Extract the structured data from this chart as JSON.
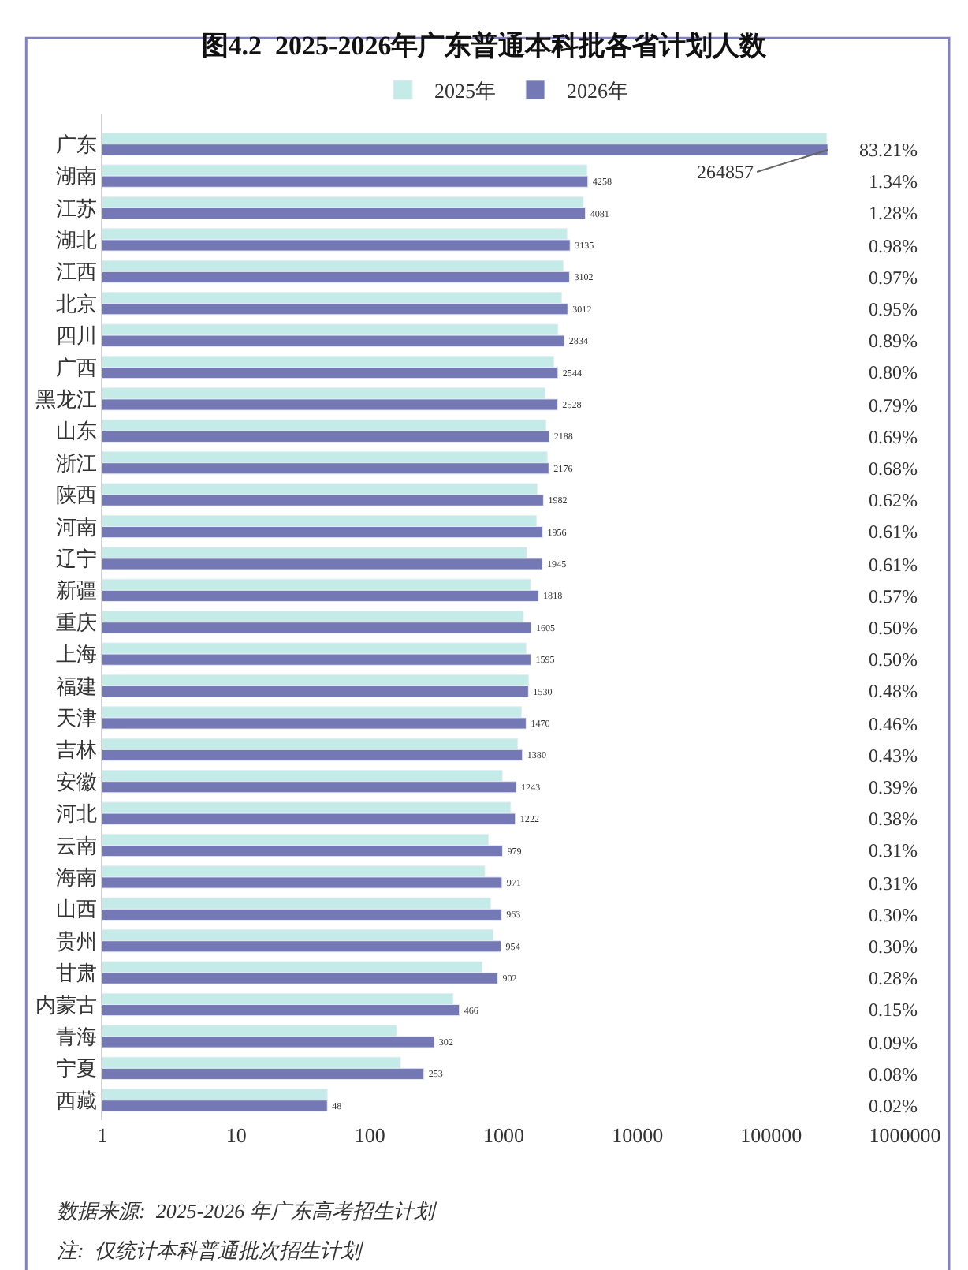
{
  "chart_data": {
    "type": "bar",
    "orientation": "horizontal",
    "title": "图4.2  2025-2026年广东普通本科批各省计划人数",
    "categories": [
      "广东",
      "湖南",
      "江苏",
      "湖北",
      "江西",
      "北京",
      "四川",
      "广西",
      "黑龙江",
      "山东",
      "浙江",
      "陕西",
      "河南",
      "辽宁",
      "新疆",
      "重庆",
      "上海",
      "福建",
      "天津",
      "吉林",
      "安徽",
      "河北",
      "云南",
      "海南",
      "山西",
      "贵州",
      "甘肃",
      "内蒙古",
      "青海",
      "宁夏",
      "西藏"
    ],
    "series": [
      {
        "name": "2025年",
        "color": "#c5ebe8",
        "values": [
          260000,
          4200,
          3935,
          2970,
          2785,
          2705,
          2545,
          2366,
          2037,
          2072,
          2117,
          1780,
          1756,
          1486,
          1589,
          1403,
          1471,
          1530,
          1355,
          1272,
          975,
          1127,
          768,
          722,
          797,
          834,
          689,
          418,
          158,
          169,
          48
        ]
      },
      {
        "name": "2026年",
        "color": "#7478b4",
        "values": [
          264857,
          4258,
          4081,
          3135,
          3102,
          3012,
          2834,
          2544,
          2528,
          2188,
          2176,
          1982,
          1956,
          1945,
          1818,
          1605,
          1595,
          1530,
          1470,
          1380,
          1243,
          1222,
          979,
          971,
          963,
          954,
          902,
          466,
          302,
          253,
          48
        ],
        "value_labels": [
          "264857",
          "4258",
          "4081",
          "3135",
          "3102",
          "3012",
          "2834",
          "2544",
          "2528",
          "2188",
          "2176",
          "1982",
          "1956",
          "1945",
          "1818",
          "1605",
          "1595",
          "1530",
          "1470",
          "1380",
          "1243",
          "1222",
          "979",
          "971",
          "963",
          "954",
          "902",
          "466",
          "302",
          "253",
          "48"
        ]
      }
    ],
    "log": "x",
    "xlim": [
      1,
      1000000
    ],
    "xticks": [
      1,
      10,
      100,
      1000,
      10000,
      100000,
      1000000
    ],
    "legend": "top",
    "annotations": [
      "83.21%",
      "1.34%",
      "1.28%",
      "0.98%",
      "0.97%",
      "0.95%",
      "0.89%",
      "0.80%",
      "0.79%",
      "0.69%",
      "0.68%",
      "0.62%",
      "0.61%",
      "0.61%",
      "0.57%",
      "0.50%",
      "0.50%",
      "0.48%",
      "0.46%",
      "0.43%",
      "0.39%",
      "0.38%",
      "0.31%",
      "0.31%",
      "0.30%",
      "0.30%",
      "0.28%",
      "0.15%",
      "0.09%",
      "0.08%",
      "0.02%",
      "数据来源:  2025-2026 年广东高考招生计划",
      "注:  仅统计本科普通批次招生计划"
    ]
  }
}
